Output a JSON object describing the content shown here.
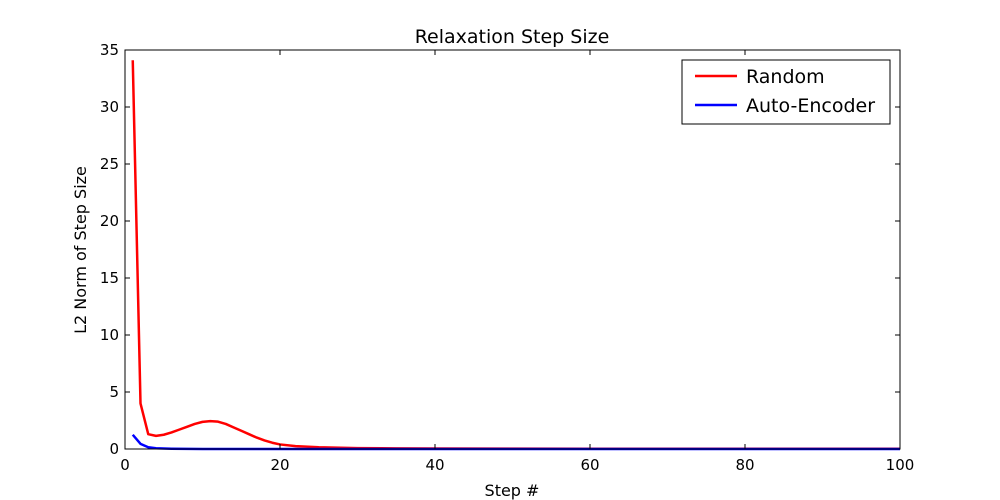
{
  "chart_data": {
    "type": "line",
    "title": "Relaxation Step Size",
    "xlabel": "Step #",
    "ylabel": "L2 Norm of Step Size",
    "xlim": [
      0,
      100
    ],
    "ylim": [
      0,
      35
    ],
    "x_ticks": [
      0,
      20,
      40,
      60,
      80,
      100
    ],
    "y_ticks": [
      0,
      5,
      10,
      15,
      20,
      25,
      30,
      35
    ],
    "grid": false,
    "legend_position": "top-right",
    "series": [
      {
        "name": "Random",
        "color": "#ff0000",
        "x": [
          1,
          2,
          3,
          4,
          5,
          6,
          7,
          8,
          9,
          10,
          11,
          12,
          13,
          14,
          15,
          16,
          17,
          18,
          19,
          20,
          22,
          25,
          30,
          35,
          40,
          50,
          60,
          70,
          80,
          90,
          100
        ],
        "y": [
          34.1,
          4.0,
          1.3,
          1.15,
          1.25,
          1.45,
          1.7,
          1.95,
          2.2,
          2.38,
          2.45,
          2.4,
          2.2,
          1.9,
          1.6,
          1.3,
          1.0,
          0.75,
          0.55,
          0.4,
          0.25,
          0.15,
          0.08,
          0.05,
          0.04,
          0.03,
          0.02,
          0.02,
          0.02,
          0.02,
          0.02
        ]
      },
      {
        "name": "Auto-Encoder",
        "color": "#0000ff",
        "x": [
          1,
          2,
          3,
          4,
          5,
          6,
          8,
          10,
          15,
          20,
          30,
          40,
          50,
          60,
          70,
          80,
          90,
          100
        ],
        "y": [
          1.25,
          0.45,
          0.15,
          0.07,
          0.04,
          0.02,
          0.01,
          0.005,
          0.003,
          0.002,
          0.002,
          0.002,
          0.002,
          0.002,
          0.002,
          0.002,
          0.002,
          0.002
        ]
      }
    ]
  }
}
